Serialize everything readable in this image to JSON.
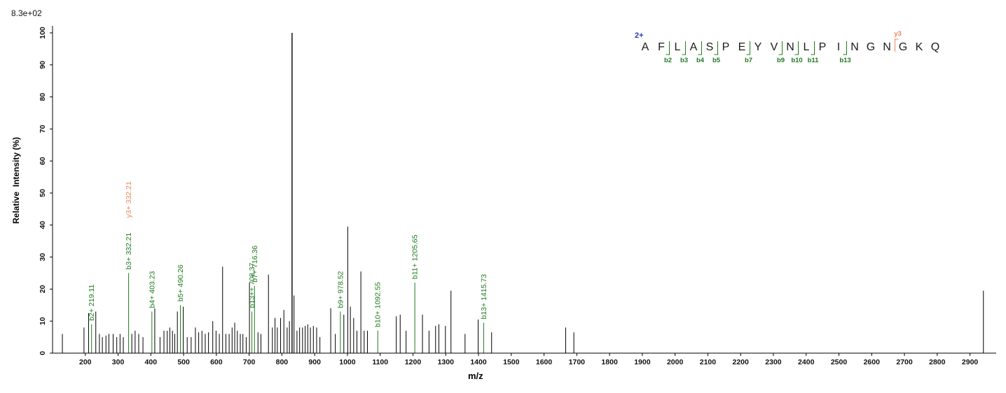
{
  "header": {
    "base_peak_label": "8.3e+02"
  },
  "axes": {
    "x_label": "m/z",
    "y_label": "Relative  Intensity (%)",
    "x_min": 100,
    "x_max": 2980,
    "y_min": 0,
    "y_max": 100,
    "x_ticks": [
      200,
      300,
      400,
      500,
      600,
      700,
      800,
      900,
      1000,
      1100,
      1200,
      1300,
      1400,
      1500,
      1600,
      1700,
      1800,
      1900,
      2000,
      2100,
      2200,
      2300,
      2400,
      2500,
      2600,
      2700,
      2800,
      2900
    ],
    "y_ticks": [
      0,
      10,
      20,
      30,
      40,
      50,
      60,
      70,
      80,
      90,
      100
    ]
  },
  "colors": {
    "peak": "#000000",
    "b_ion": "#1f7a1f",
    "y_ion": "#e8875f",
    "charge": "#2a35b8",
    "background": "#ffffff"
  },
  "chart_data": {
    "type": "bar",
    "subtype": "tandem-mass-spectrum",
    "title": "",
    "xlabel": "m/z",
    "ylabel": "Relative  Intensity (%)",
    "xlim": [
      100,
      2980
    ],
    "ylim": [
      0,
      100
    ],
    "base_peak_label": "8.3e+02",
    "peaks": [
      [
        130,
        6
      ],
      [
        196,
        8
      ],
      [
        210,
        12.5
      ],
      [
        219.11,
        9
      ],
      [
        232,
        13
      ],
      [
        243,
        6
      ],
      [
        252,
        5
      ],
      [
        263,
        5.5
      ],
      [
        272,
        6
      ],
      [
        285,
        6
      ],
      [
        296,
        5
      ],
      [
        306,
        6
      ],
      [
        316,
        5
      ],
      [
        332.21,
        25
      ],
      [
        342,
        6
      ],
      [
        352,
        7
      ],
      [
        363,
        6
      ],
      [
        376,
        5
      ],
      [
        403.23,
        13
      ],
      [
        412,
        14
      ],
      [
        428,
        5
      ],
      [
        440,
        7
      ],
      [
        450,
        7
      ],
      [
        458,
        8
      ],
      [
        466,
        7
      ],
      [
        473,
        6
      ],
      [
        481,
        13
      ],
      [
        490.26,
        15
      ],
      [
        499,
        14.5
      ],
      [
        511,
        5
      ],
      [
        523,
        5
      ],
      [
        536,
        8
      ],
      [
        546,
        6.5
      ],
      [
        556,
        7
      ],
      [
        566,
        6
      ],
      [
        576,
        6.5
      ],
      [
        589,
        10
      ],
      [
        599,
        7
      ],
      [
        609,
        6
      ],
      [
        619,
        27
      ],
      [
        629,
        6
      ],
      [
        639,
        6
      ],
      [
        648,
        8
      ],
      [
        656,
        9.5
      ],
      [
        664,
        7
      ],
      [
        673,
        6
      ],
      [
        681,
        6
      ],
      [
        691,
        5
      ],
      [
        701,
        22
      ],
      [
        708.37,
        13
      ],
      [
        716.36,
        21
      ],
      [
        727,
        6.5
      ],
      [
        736,
        6
      ],
      [
        759,
        24.5
      ],
      [
        771,
        8
      ],
      [
        779,
        11
      ],
      [
        786,
        8
      ],
      [
        796,
        11
      ],
      [
        806,
        13.5
      ],
      [
        816,
        8
      ],
      [
        823,
        10
      ],
      [
        831,
        100
      ],
      [
        837,
        18
      ],
      [
        846,
        7
      ],
      [
        854,
        8
      ],
      [
        863,
        8
      ],
      [
        871,
        8.5
      ],
      [
        879,
        9
      ],
      [
        887,
        8
      ],
      [
        896,
        8.5
      ],
      [
        906,
        8
      ],
      [
        916,
        5
      ],
      [
        949,
        14
      ],
      [
        963,
        6
      ],
      [
        978.52,
        13
      ],
      [
        989,
        12
      ],
      [
        1001,
        39.5
      ],
      [
        1009,
        14.5
      ],
      [
        1019,
        11
      ],
      [
        1029,
        7
      ],
      [
        1041,
        25.5
      ],
      [
        1051,
        7
      ],
      [
        1061,
        7
      ],
      [
        1092.55,
        7
      ],
      [
        1149,
        11.5
      ],
      [
        1161,
        12
      ],
      [
        1179,
        7
      ],
      [
        1205.65,
        22
      ],
      [
        1229,
        12
      ],
      [
        1249,
        7
      ],
      [
        1269,
        8.5
      ],
      [
        1279,
        9
      ],
      [
        1299,
        8.5
      ],
      [
        1316,
        19.5
      ],
      [
        1359,
        6
      ],
      [
        1399,
        10.5
      ],
      [
        1415.73,
        9.5
      ],
      [
        1440,
        6.5
      ],
      [
        1666,
        8
      ],
      [
        1691,
        6.5
      ],
      [
        2941,
        19.5
      ]
    ],
    "annotations": [
      {
        "mz": 219.11,
        "ion": "b",
        "label": "b2+ 219.11"
      },
      {
        "mz": 332.21,
        "ion": "b",
        "label": "b3+ 332.21"
      },
      {
        "mz": 332.21,
        "ion": "y",
        "label": "y3+ 332.21"
      },
      {
        "mz": 403.23,
        "ion": "b",
        "label": "b4+ 403.23"
      },
      {
        "mz": 490.26,
        "ion": "b",
        "label": "b5+ 490.26"
      },
      {
        "mz": 708.37,
        "ion": "b",
        "label": "b13++ 708.37"
      },
      {
        "mz": 716.36,
        "ion": "b",
        "label": "b7+ 716.36"
      },
      {
        "mz": 978.52,
        "ion": "b",
        "label": "b9+ 978.52"
      },
      {
        "mz": 1092.55,
        "ion": "b",
        "label": "b10+ 1092.55"
      },
      {
        "mz": 1205.65,
        "ion": "b",
        "label": "b11+ 1205.65"
      },
      {
        "mz": 1415.73,
        "ion": "b",
        "label": "b13+ 1415.73"
      }
    ]
  },
  "peptide": {
    "charge_label": "2+",
    "sequence": [
      "A",
      "F",
      "L",
      "A",
      "S",
      "P",
      "E",
      "Y",
      "V",
      "N",
      "L",
      "P",
      "I",
      "N",
      "G",
      "N",
      "G",
      "K",
      "Q"
    ],
    "b_ions": [
      {
        "after_residue": 2,
        "label": "b2"
      },
      {
        "after_residue": 3,
        "label": "b3"
      },
      {
        "after_residue": 4,
        "label": "b4"
      },
      {
        "after_residue": 5,
        "label": "b5"
      },
      {
        "after_residue": 7,
        "label": "b7"
      },
      {
        "after_residue": 9,
        "label": "b9"
      },
      {
        "after_residue": 10,
        "label": "b10"
      },
      {
        "after_residue": 11,
        "label": "b11"
      },
      {
        "after_residue": 13,
        "label": "b13"
      }
    ],
    "y_ions": [
      {
        "before_residue": 17,
        "label": "y3"
      }
    ]
  }
}
